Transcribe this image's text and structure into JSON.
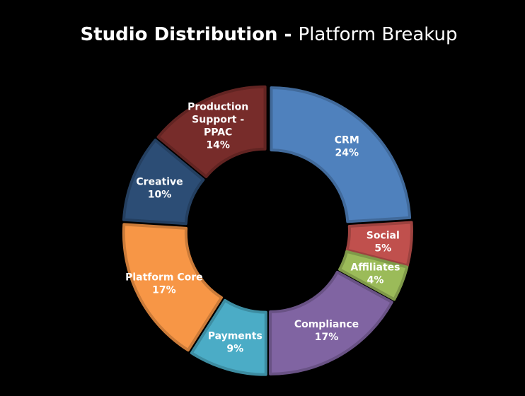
{
  "chart_data": {
    "type": "pie",
    "subtype": "donut-exploded",
    "title_bold": "Studio Distribution - ",
    "title_regular": "Platform Breakup",
    "legend": "none",
    "slices": [
      {
        "label": "CRM",
        "value": 24,
        "display": "24%",
        "color": "#4f81bd"
      },
      {
        "label": "Social",
        "value": 5,
        "display": "5%",
        "color": "#c0504d"
      },
      {
        "label": "Affiliates",
        "value": 4,
        "display": "4%",
        "color": "#9bbb59"
      },
      {
        "label": "Compliance",
        "value": 17,
        "display": "17%",
        "color": "#8064a2"
      },
      {
        "label": "Payments",
        "value": 9,
        "display": "9%",
        "color": "#4bacc6"
      },
      {
        "label": "Platform Core",
        "value": 17,
        "display": "17%",
        "color": "#f79646"
      },
      {
        "label": "Creative",
        "value": 10,
        "display": "10%",
        "color": "#2c4d75"
      },
      {
        "label": "Production Support - PPAC",
        "value": 14,
        "display": "14%",
        "color": "#772c2a"
      }
    ]
  }
}
